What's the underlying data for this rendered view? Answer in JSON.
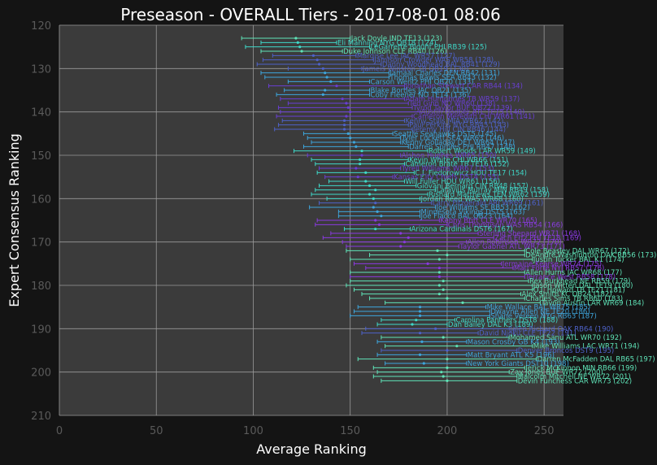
{
  "chart_data": {
    "type": "scatter",
    "title": "Preseason - OVERALL Tiers - 2017-08-01 08:06",
    "xlabel": "Average Ranking",
    "ylabel": "Expert Consensus Ranking",
    "xlim": [
      0,
      260
    ],
    "ylim": [
      210,
      120
    ],
    "xticks": [
      0,
      50,
      100,
      150,
      200,
      250
    ],
    "yticks": [
      120,
      130,
      140,
      150,
      160,
      170,
      180,
      190,
      200,
      210
    ],
    "grid": true,
    "legend": "none",
    "colors": {
      "background": "#141414",
      "plot_bg": "#3b3b3b",
      "grid": "#9a9a9a",
      "tier_a": "#3fd9c9",
      "tier_b": "#4e62c9",
      "tier_c": "#3ea6dd",
      "tier_d": "#6a3fd4",
      "tier_e": "#8a3ae0",
      "tier_f": "#5fe4b8"
    },
    "points": [
      {
        "label": "Jack Doyle IND  TE13 (123)",
        "y": 123,
        "x": 122,
        "lo": 94,
        "hi": 150,
        "tier": "tier_f"
      },
      {
        "label": "Eli Manning NYG  QB18 (124)",
        "y": 124,
        "x": 123,
        "lo": 104,
        "hi": 143,
        "tier": "tier_a"
      },
      {
        "label": "LeGarrette Blount PHI  RB39 (125)",
        "y": 125,
        "x": 124,
        "lo": 96,
        "hi": 160,
        "tier": "tier_a"
      },
      {
        "label": "Duke Johnson CLE  RB40 (126)",
        "y": 126,
        "x": 125,
        "lo": 104,
        "hi": 146,
        "tier": "tier_f"
      },
      {
        "label": "Marqise Lee JAC  WR57 (127)",
        "y": 127,
        "x": 131,
        "lo": 110,
        "hi": 153,
        "tier": "tier_b"
      },
      {
        "label": "Jamison Crowder WAS  WR58 (128)",
        "y": 128,
        "x": 133,
        "lo": 105,
        "hi": 162,
        "tier": "tier_b"
      },
      {
        "label": "Danny Woodhead BAL  RB41 (129)",
        "y": 129,
        "x": 134,
        "lo": 102,
        "hi": 166,
        "tier": "tier_b"
      },
      {
        "label": "Jameis Winston TB  QB19 (130)",
        "y": 130,
        "x": 136,
        "lo": 118,
        "hi": 156,
        "tier": "tier_b"
      },
      {
        "label": "Jamaal Charles DEN  RB42 (131)",
        "y": 131,
        "x": 137,
        "lo": 104,
        "hi": 170,
        "tier": "tier_c"
      },
      {
        "label": "Thomas Rawls SEA  RB43 (132)",
        "y": 132,
        "x": 138,
        "lo": 106,
        "hi": 170,
        "tier": "tier_c"
      },
      {
        "label": "Carson Wentz PHI  QB20 (133)",
        "y": 133,
        "x": 140,
        "lo": 118,
        "hi": 160,
        "tier": "tier_c"
      },
      {
        "label": "Jonathan Stewart CAR  RB44 (134)",
        "y": 134,
        "x": 143,
        "lo": 108,
        "hi": 178,
        "tier": "tier_d"
      },
      {
        "label": "Blake Bortles JAC  QB21 (135)",
        "y": 135,
        "x": 137,
        "lo": 116,
        "hi": 160,
        "tier": "tier_c"
      },
      {
        "label": "Coby Fleener NO  TE14 (136)",
        "y": 136,
        "x": 136,
        "lo": 112,
        "hi": 160,
        "tier": "tier_c"
      },
      {
        "label": "Adam Humphries TB  WR59 (137)",
        "y": 137,
        "x": 146,
        "lo": 114,
        "hi": 178,
        "tier": "tier_d"
      },
      {
        "label": "Ted Ginn NO  WR60 (138)",
        "y": 138,
        "x": 148,
        "lo": 118,
        "hi": 180,
        "tier": "tier_d"
      },
      {
        "label": "Tyrod Taylor BUF  QB22 (139)",
        "y": 139,
        "x": 149,
        "lo": 113,
        "hi": 182,
        "tier": "tier_d"
      },
      {
        "label": "Austin Hooper ATL  TE15 (140)",
        "y": 140,
        "x": 150,
        "lo": 114,
        "hi": 186,
        "tier": "tier_d"
      },
      {
        "label": "Cameron Meredith CHI  WR61 (141)",
        "y": 141,
        "x": 148,
        "lo": 112,
        "hi": 182,
        "tier": "tier_d"
      },
      {
        "label": "Kenny Stills MIA  WR62 (142)",
        "y": 142,
        "x": 147,
        "lo": 115,
        "hi": 178,
        "tier": "tier_b"
      },
      {
        "label": "Paul Perkins NYG  RB45 (143)",
        "y": 143,
        "x": 147,
        "lo": 113,
        "hi": 180,
        "tier": "tier_b"
      },
      {
        "label": "Jeremy Hill CIN  RB46 (144)",
        "y": 144,
        "x": 147,
        "lo": 111,
        "hi": 182,
        "tier": "tier_b"
      },
      {
        "label": "Seattle Seahawks  DST5 (145)",
        "y": 145,
        "x": 149,
        "lo": 126,
        "hi": 172,
        "tier": "tier_c"
      },
      {
        "label": "Tyler Lockett SEA  WR63 (146)",
        "y": 146,
        "x": 150,
        "lo": 128,
        "hi": 176,
        "tier": "tier_c"
      },
      {
        "label": "Kenny Golladay DET  WR64 (147)",
        "y": 147,
        "x": 152,
        "lo": 130,
        "hi": 176,
        "tier": "tier_c"
      },
      {
        "label": "Darren Sproles PHI  RB47 (148)",
        "y": 148,
        "x": 153,
        "lo": 126,
        "hi": 180,
        "tier": "tier_c"
      },
      {
        "label": "Robert Woods LAR  WR59 (149)",
        "y": 149,
        "x": 156,
        "lo": 121,
        "hi": 190,
        "tier": "tier_a"
      },
      {
        "label": "Alshon Hughes  WR65 (150)",
        "y": 150,
        "x": 156,
        "lo": 128,
        "hi": 176,
        "tier": "tier_d"
      },
      {
        "label": "Kevin White CHI  WR66 (151)",
        "y": 151,
        "x": 155,
        "lo": 130,
        "hi": 180,
        "tier": "tier_a"
      },
      {
        "label": "Cameron Brate TB  TE16 (152)",
        "y": 152,
        "x": 155,
        "lo": 132,
        "hi": 178,
        "tier": "tier_a"
      },
      {
        "label": "Tyrell Williams  WR67 (153)",
        "y": 153,
        "x": 153,
        "lo": 134,
        "hi": 176,
        "tier": "tier_d"
      },
      {
        "label": "C.J. Fiedorowicz HOU  TE17 (154)",
        "y": 154,
        "x": 158,
        "lo": 133,
        "hi": 183,
        "tier": "tier_a"
      },
      {
        "label": "Kansas City Chiefs  DST4 (155)",
        "y": 155,
        "x": 154,
        "lo": 137,
        "hi": 172,
        "tier": "tier_d"
      },
      {
        "label": "Will Fuller HOU  WR61 (156)",
        "y": 156,
        "x": 158,
        "lo": 139,
        "hi": 178,
        "tier": "tier_a"
      },
      {
        "label": "Giovani Bernard CIN  RB48 (157)",
        "y": 157,
        "x": 160,
        "lo": 134,
        "hi": 184,
        "tier": "tier_a"
      },
      {
        "label": "Latavius Murray MIN  RB49 (158)",
        "y": 158,
        "x": 163,
        "lo": 132,
        "hi": 194,
        "tier": "tier_a"
      },
      {
        "label": "Rishard Matthews TEN  WR62 (159)",
        "y": 159,
        "x": 160,
        "lo": 130,
        "hi": 190,
        "tier": "tier_a"
      },
      {
        "label": "Jordan Reed WAS  WR68 (160)",
        "y": 160,
        "x": 162,
        "lo": 138,
        "hi": 186,
        "tier": "tier_a"
      },
      {
        "label": "Larry Fitzgerald ARI  WR69 (161)",
        "y": 161,
        "x": 163,
        "lo": 134,
        "hi": 192,
        "tier": "tier_b"
      },
      {
        "label": "Joe Williams SF  RB53 (162)",
        "y": 162,
        "x": 162,
        "lo": 129,
        "hi": 194,
        "tier": "tier_c"
      },
      {
        "label": "Minnesota Vikings  DST5 (163)",
        "y": 163,
        "x": 164,
        "lo": 144,
        "hi": 186,
        "tier": "tier_c"
      },
      {
        "label": "Joe Flacco BAL  QB23 (164)",
        "y": 164,
        "x": 166,
        "lo": 144,
        "hi": 186,
        "tier": "tier_c"
      },
      {
        "label": "Kenny Britt CLE  WR70 (165)",
        "y": 165,
        "x": 163,
        "lo": 133,
        "hi": 196,
        "tier": "tier_e"
      },
      {
        "label": "Chris Thompson WAS  RB54 (166)",
        "y": 166,
        "x": 165,
        "lo": 132,
        "hi": 200,
        "tier": "tier_e"
      },
      {
        "label": "Arizona Cardinals  DST6 (167)",
        "y": 167,
        "x": 163,
        "lo": 147,
        "hi": 181,
        "tier": "tier_a"
      },
      {
        "label": "Sterling Shepard  WR71 (168)",
        "y": 168,
        "x": 176,
        "lo": 140,
        "hi": 216,
        "tier": "tier_e"
      },
      {
        "label": "Zach Ertz PHI  TE18 (169)",
        "y": 169,
        "x": 180,
        "lo": 136,
        "hi": 224,
        "tier": "tier_e"
      },
      {
        "label": "Allen Robinson  WR72 (170)",
        "y": 170,
        "x": 178,
        "lo": 146,
        "hi": 210,
        "tier": "tier_e"
      },
      {
        "label": "Taylor Gabriel ATL  WR73 (171)",
        "y": 171,
        "x": 176,
        "lo": 148,
        "hi": 206,
        "tier": "tier_e"
      },
      {
        "label": "Cole Beasley DAL  WR67 (172)",
        "y": 172,
        "x": 195,
        "lo": 148,
        "hi": 240,
        "tier": "tier_f"
      },
      {
        "label": "DeAndre Washington OAK  RB56 (173)",
        "y": 173,
        "x": 200,
        "lo": 160,
        "hi": 240,
        "tier": "tier_f"
      },
      {
        "label": "Justin Tucker BAL  K1 (174)",
        "y": 174,
        "x": 196,
        "lo": 150,
        "hi": 244,
        "tier": "tier_f"
      },
      {
        "label": "Jermaine Kearse  WR74 (175)",
        "y": 175,
        "x": 190,
        "lo": 152,
        "hi": 228,
        "tier": "tier_e"
      },
      {
        "label": "Matt Forte NYJ  RB57 (176)",
        "y": 176,
        "x": 196,
        "lo": 158,
        "hi": 234,
        "tier": "tier_e"
      },
      {
        "label": "Allen Hurns JAC  WR68 (177)",
        "y": 177,
        "x": 196,
        "lo": 150,
        "hi": 240,
        "tier": "tier_f"
      },
      {
        "label": "Terrance West  RB58 (178)",
        "y": 178,
        "x": 196,
        "lo": 150,
        "hi": 240,
        "tier": "tier_e"
      },
      {
        "label": "Rex Burkhead NE  RB59 (179)",
        "y": 179,
        "x": 198,
        "lo": 150,
        "hi": 242,
        "tier": "tier_f"
      },
      {
        "label": "Jason Witten DAL  TE19 (180)",
        "y": 180,
        "x": 196,
        "lo": 148,
        "hi": 244,
        "tier": "tier_f"
      },
      {
        "label": "O.J. Howard TB  TE21 (181)",
        "y": 181,
        "x": 198,
        "lo": 152,
        "hi": 244,
        "tier": "tier_f"
      },
      {
        "label": "Alex Smith KC  QB24 (182)",
        "y": 182,
        "x": 196,
        "lo": 156,
        "hi": 238,
        "tier": "tier_f"
      },
      {
        "label": "Charles Sims TB  RB60 (183)",
        "y": 183,
        "x": 200,
        "lo": 160,
        "hi": 240,
        "tier": "tier_f"
      },
      {
        "label": "Tavon Austin LAR  WR69 (184)",
        "y": 184,
        "x": 208,
        "lo": 168,
        "hi": 248,
        "tier": "tier_f"
      },
      {
        "label": "Mike Wallace BAL  WR75 (185)",
        "y": 185,
        "x": 186,
        "lo": 154,
        "hi": 220,
        "tier": "tier_c"
      },
      {
        "label": "Dwayne Allen NE  TE20 (186)",
        "y": 186,
        "x": 186,
        "lo": 152,
        "hi": 222,
        "tier": "tier_c"
      },
      {
        "label": "Shane Vereen NYG  RB63 (187)",
        "y": 187,
        "x": 186,
        "lo": 150,
        "hi": 222,
        "tier": "tier_c"
      },
      {
        "label": "Carolina Panthers  DST8 (188)",
        "y": 188,
        "x": 184,
        "lo": 166,
        "hi": 204,
        "tier": "tier_a"
      },
      {
        "label": "Dan Bailey DAL  K3 (189)",
        "y": 189,
        "x": 182,
        "lo": 164,
        "hi": 200,
        "tier": "tier_a"
      },
      {
        "label": "Jalen Richard OAK  RB64 (190)",
        "y": 190,
        "x": 194,
        "lo": 158,
        "hi": 232,
        "tier": "tier_b"
      },
      {
        "label": "David Njoku CLE  TE22 (191)",
        "y": 191,
        "x": 186,
        "lo": 156,
        "hi": 216,
        "tier": "tier_b"
      },
      {
        "label": "Mohamed Sanu ATL  WR70 (192)",
        "y": 192,
        "x": 198,
        "lo": 166,
        "hi": 232,
        "tier": "tier_f"
      },
      {
        "label": "Mason Crosby GB  K4 (193)",
        "y": 193,
        "x": 187,
        "lo": 164,
        "hi": 210,
        "tier": "tier_c"
      },
      {
        "label": "Mike Williams LAC  WR71 (194)",
        "y": 194,
        "x": 205,
        "lo": 168,
        "hi": 244,
        "tier": "tier_f"
      },
      {
        "label": "Denver Broncos  DST9 (195)",
        "y": 195,
        "x": 200,
        "lo": 166,
        "hi": 236,
        "tier": "tier_b"
      },
      {
        "label": "Matt Bryant ATL  K5 (196)",
        "y": 196,
        "x": 186,
        "lo": 164,
        "hi": 210,
        "tier": "tier_c"
      },
      {
        "label": "Darren McFadden DAL  RB65 (197)",
        "y": 197,
        "x": 200,
        "lo": 154,
        "hi": 246,
        "tier": "tier_f"
      },
      {
        "label": "New York Giants  DST10 (198)",
        "y": 198,
        "x": 188,
        "lo": 168,
        "hi": 210,
        "tier": "tier_c"
      },
      {
        "label": "Jerick McKinnon MIN  RB66 (199)",
        "y": 199,
        "x": 200,
        "lo": 162,
        "hi": 240,
        "tier": "tier_f"
      },
      {
        "label": "Zay Jones BUF  WR72 (200)",
        "y": 200,
        "x": 197,
        "lo": 164,
        "hi": 232,
        "tier": "tier_f"
      },
      {
        "label": "Malcolm Mitchell NE  WR72 (201)",
        "y": 201,
        "x": 198,
        "lo": 162,
        "hi": 236,
        "tier": "tier_f"
      },
      {
        "label": "Devin Funchess CAR  WR73 (202)",
        "y": 202,
        "x": 200,
        "lo": 166,
        "hi": 236,
        "tier": "tier_f"
      }
    ]
  }
}
